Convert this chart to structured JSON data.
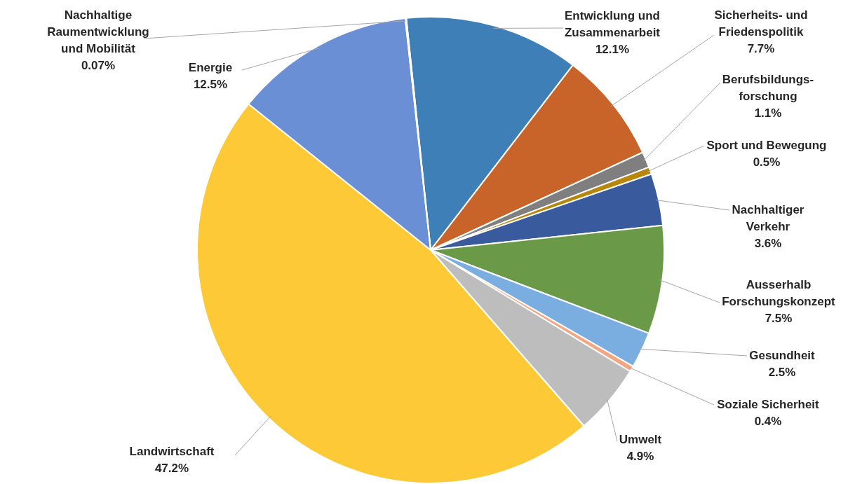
{
  "chart_data": {
    "type": "pie",
    "categories": [
      "Entwicklung und\nZusammenarbeit",
      "Sicherheits- und\nFriedenspolitik",
      "Berufsbildungs-\nforschung",
      "Sport und Bewegung",
      "Nachhaltiger\nVerkehr",
      "Ausserhalb\nForschungskonzept",
      "Gesundheit",
      "Soziale Sicherheit",
      "Umwelt",
      "Landwirtschaft",
      "Energie",
      "Nachhaltige\nRaumentwicklung\nund Mobilität"
    ],
    "values": [
      12.1,
      7.7,
      1.1,
      0.5,
      3.6,
      7.5,
      2.5,
      0.4,
      4.9,
      47.2,
      12.5,
      0.07
    ],
    "colors": [
      "#3f7fb8",
      "#c8642a",
      "#7f7f7f",
      "#b8860b",
      "#3a5a9e",
      "#6a9a48",
      "#7aaee0",
      "#f4a582",
      "#bdbdbd",
      "#fec936",
      "#6b8fd4",
      "#4472c4"
    ],
    "value_labels": [
      "12.1%",
      "7.7%",
      "1.1%",
      "0.5%",
      "3.6%",
      "7.5%",
      "2.5%",
      "0.4%",
      "4.9%",
      "47.2%",
      "12.5%",
      "0.07%"
    ]
  }
}
